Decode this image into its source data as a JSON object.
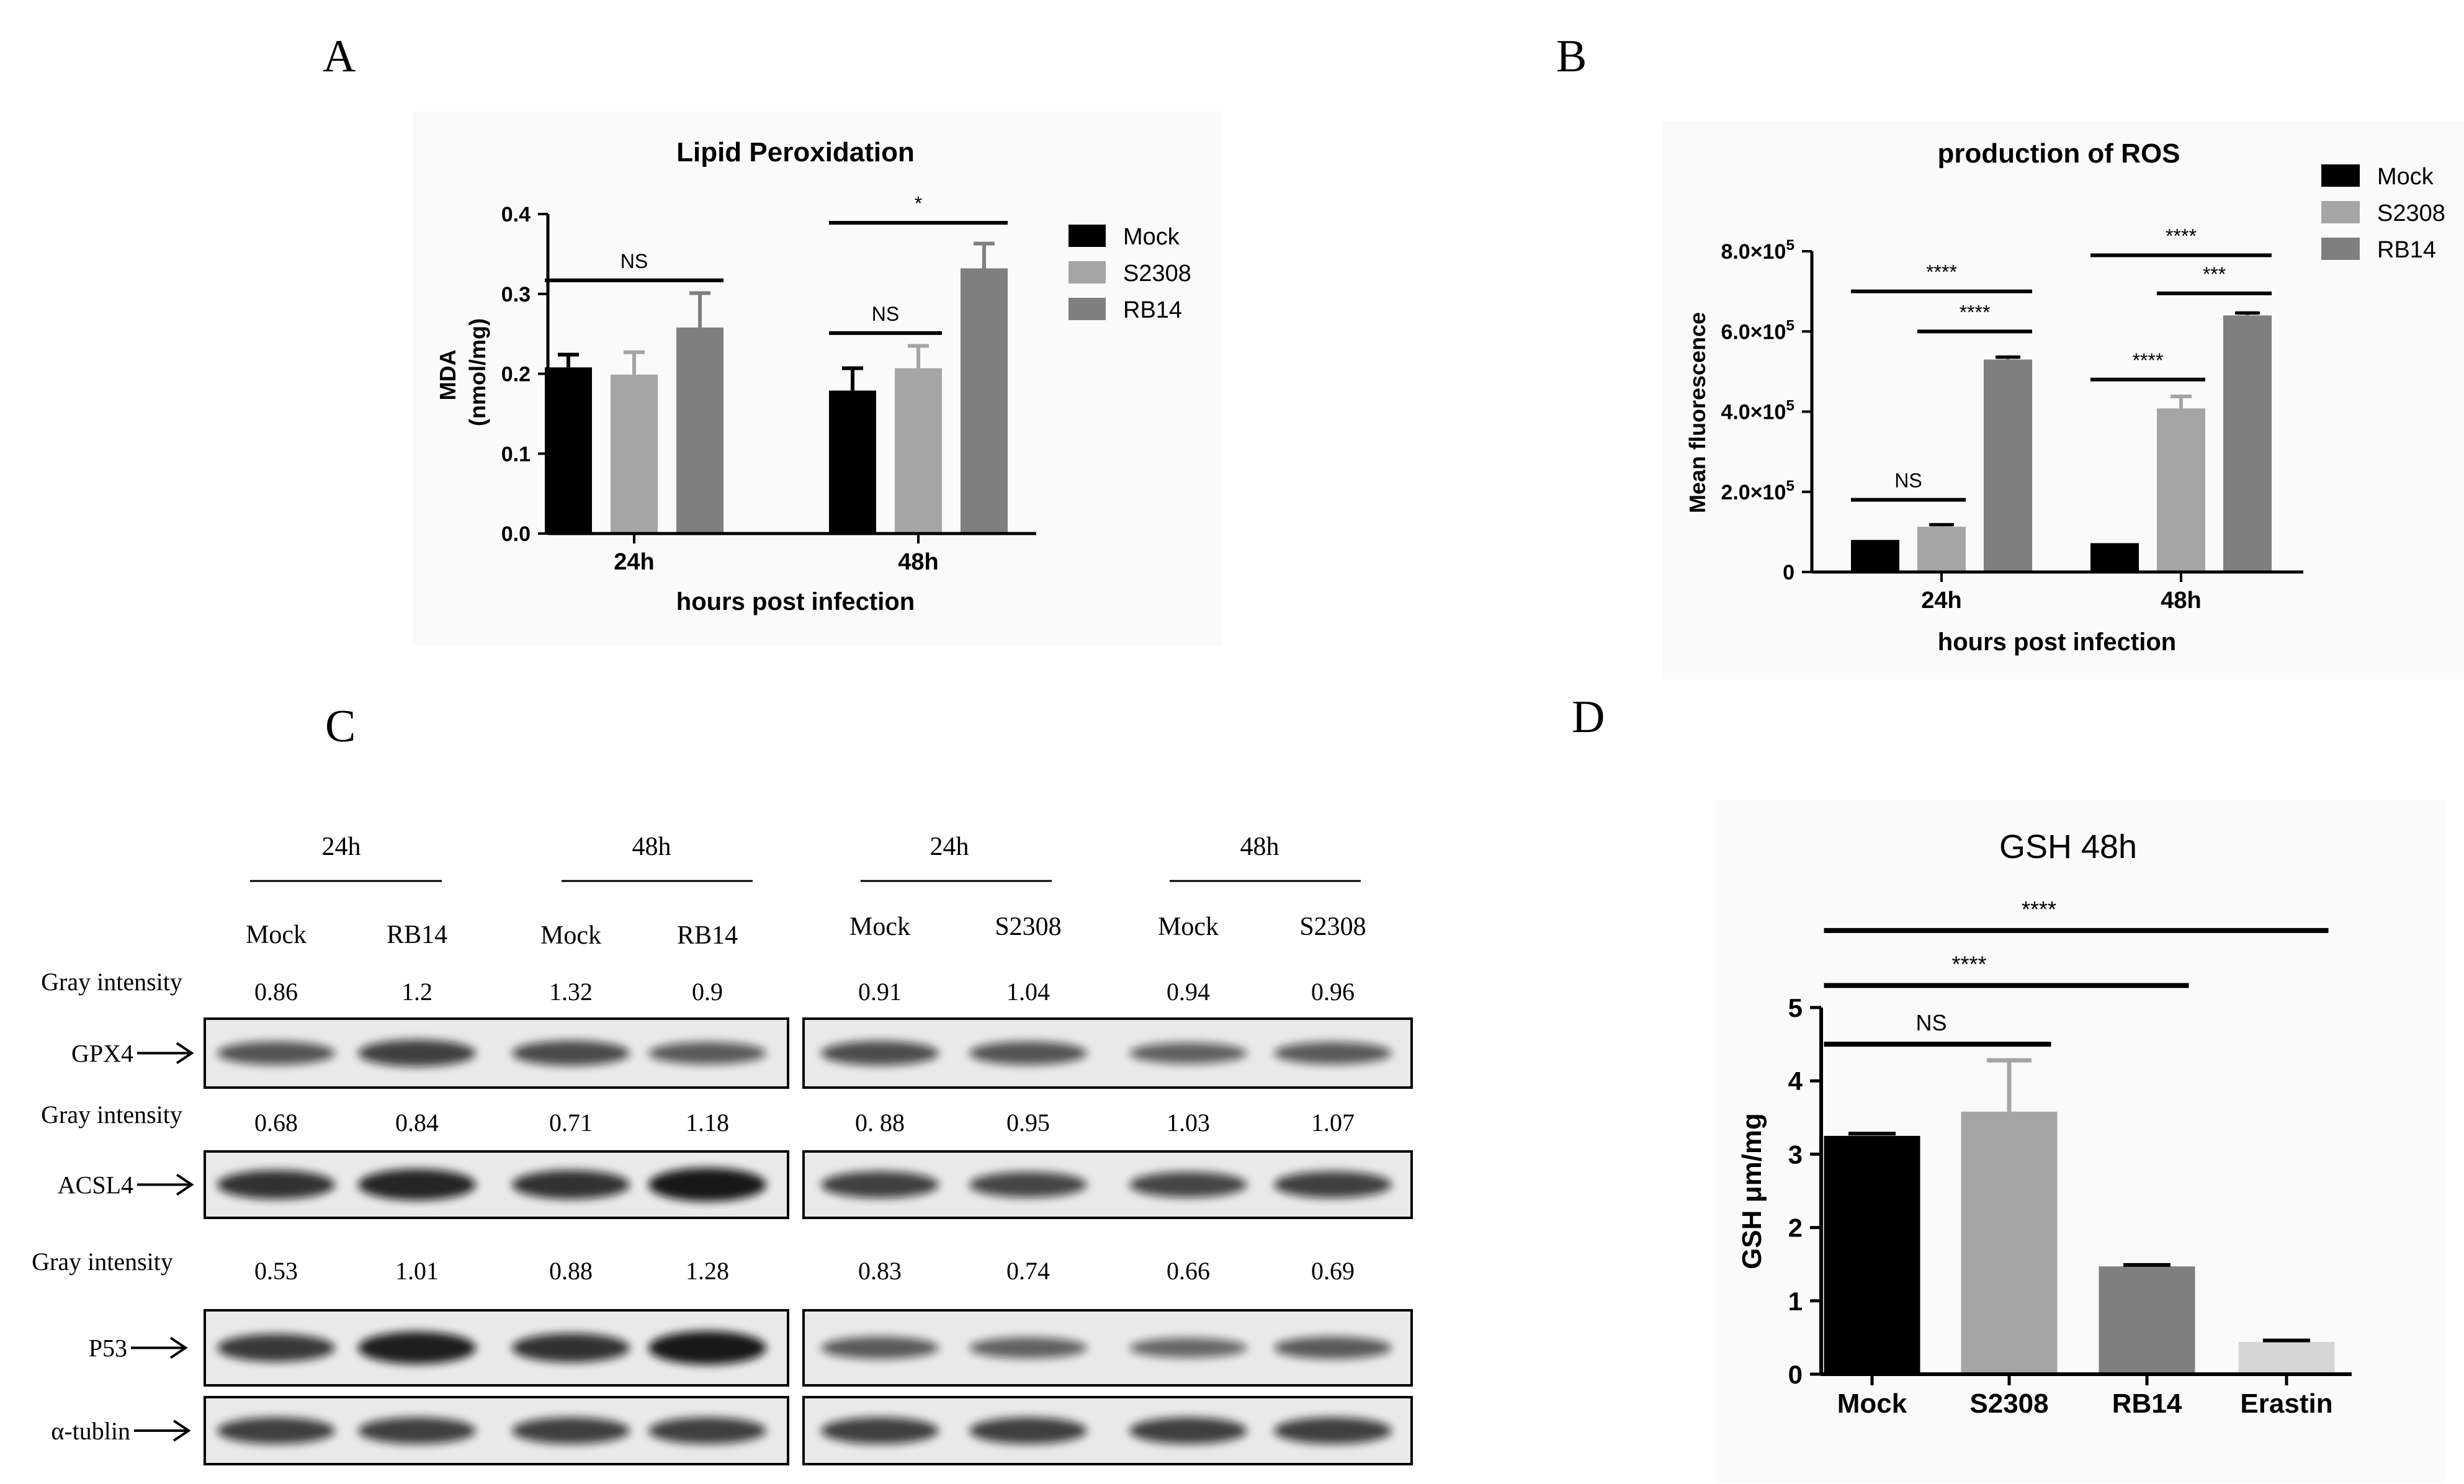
{
  "panels": {
    "a": {
      "letter": "A"
    },
    "b": {
      "letter": "B"
    },
    "c": {
      "letter": "C"
    },
    "d": {
      "letter": "D"
    }
  },
  "series_colors": {
    "Mock": "#000000",
    "S2308": "#a5a5a5",
    "RB14": "#7f7f7f",
    "Erastin": "#d6d6d6"
  },
  "chart_data": [
    {
      "panel": "A",
      "type": "bar",
      "title": "Lipid Peroxidation",
      "xlabel": "hours post infection",
      "ylabel": "MDA\n(nmol/mg)",
      "categories": [
        "24h",
        "48h"
      ],
      "series": [
        {
          "name": "Mock",
          "values": [
            0.208,
            0.179
          ],
          "errors": [
            0.016,
            0.028
          ]
        },
        {
          "name": "S2308",
          "values": [
            0.199,
            0.207
          ],
          "errors": [
            0.028,
            0.028
          ]
        },
        {
          "name": "RB14",
          "values": [
            0.258,
            0.332
          ],
          "errors": [
            0.043,
            0.031
          ]
        }
      ],
      "ylim": [
        0,
        0.4
      ],
      "yticks": [
        "0.0",
        "0.1",
        "0.2",
        "0.3",
        "0.4"
      ],
      "legend": "right",
      "significance": [
        {
          "label": "NS",
          "group": "24h",
          "from": "Mock",
          "to": "RB14",
          "y": 0.317
        },
        {
          "label": "NS",
          "group": "48h",
          "from": "Mock",
          "to": "S2308",
          "y": 0.251
        },
        {
          "label": "*",
          "group": "48h",
          "from": "Mock",
          "to": "RB14",
          "y": 0.389
        }
      ]
    },
    {
      "panel": "B",
      "type": "bar",
      "title": "production of ROS",
      "xlabel": "hours post infection",
      "ylabel": "Mean fluorescence",
      "categories": [
        "24h",
        "48h"
      ],
      "series": [
        {
          "name": "Mock",
          "values": [
            80000,
            72000
          ],
          "errors": [
            0,
            0
          ]
        },
        {
          "name": "S2308",
          "values": [
            113000,
            408000
          ],
          "errors": [
            5000,
            30000
          ]
        },
        {
          "name": "RB14",
          "values": [
            530000,
            640000
          ],
          "errors": [
            6000,
            6000
          ]
        }
      ],
      "ylim": [
        0,
        800000
      ],
      "yticks": [
        {
          "v": 0,
          "m": "0",
          "e": ""
        },
        {
          "v": 200000,
          "m": "2.0×10",
          "e": "5"
        },
        {
          "v": 400000,
          "m": "4.0×10",
          "e": "5"
        },
        {
          "v": 600000,
          "m": "6.0×10",
          "e": "5"
        },
        {
          "v": 800000,
          "m": "8.0×10",
          "e": "5"
        }
      ],
      "legend": "top-right",
      "significance": [
        {
          "label": "NS",
          "group": "24h",
          "from": "Mock",
          "to": "S2308",
          "y": 180000
        },
        {
          "label": "****",
          "group": "24h",
          "from": "S2308",
          "to": "RB14",
          "y": 600000
        },
        {
          "label": "****",
          "group": "24h",
          "from": "Mock",
          "to": "RB14",
          "y": 700000
        },
        {
          "label": "****",
          "group": "48h",
          "from": "Mock",
          "to": "S2308",
          "y": 480000
        },
        {
          "label": "***",
          "group": "48h",
          "from": "S2308",
          "to": "RB14",
          "y": 695000
        },
        {
          "label": "****",
          "group": "48h",
          "from": "Mock",
          "to": "RB14",
          "y": 790000
        }
      ]
    },
    {
      "panel": "D",
      "type": "bar",
      "title": "GSH 48h",
      "xlabel": "",
      "ylabel": "GSH μm/mg",
      "categories": [
        "Mock",
        "S2308",
        "RB14",
        "Erastin"
      ],
      "values": [
        3.25,
        3.58,
        1.47,
        0.44
      ],
      "errors": [
        0.03,
        0.7,
        0.02,
        0.02
      ],
      "ylim": [
        0,
        5
      ],
      "yticks": [
        "0",
        "1",
        "2",
        "3",
        "4",
        "5"
      ],
      "significance": [
        {
          "label": "NS",
          "from": "Mock",
          "to": "S2308",
          "y": 4.5
        },
        {
          "label": "****",
          "from": "Mock",
          "to": "RB14",
          "y": 5.3
        },
        {
          "label": "****",
          "from": "Mock",
          "to": "Erastin",
          "y": 6.05
        }
      ]
    }
  ],
  "blot": {
    "groups": [
      {
        "time": "24h",
        "lanes": [
          "Mock",
          "RB14"
        ]
      },
      {
        "time": "48h",
        "lanes": [
          "Mock",
          "RB14"
        ]
      },
      {
        "time": "24h",
        "lanes": [
          "Mock",
          "S2308"
        ]
      },
      {
        "time": "48h",
        "lanes": [
          "Mock",
          "S2308"
        ]
      }
    ],
    "rows": [
      {
        "label": "GPX4",
        "gray_label": "Gray intensity",
        "values": [
          "0.86",
          "1.2",
          "1.32",
          "0.9",
          "0.91",
          "1.04",
          "0.94",
          "0.96"
        ],
        "band": [
          0.55,
          0.7,
          0.62,
          0.5,
          0.6,
          0.55,
          0.45,
          0.5
        ]
      },
      {
        "label": "ACSL4",
        "gray_label": "Gray intensity",
        "values": [
          "0.68",
          "0.84",
          "0.71",
          "1.18",
          "0. 88",
          "0.95",
          "1.03",
          "1.07"
        ],
        "band": [
          0.8,
          0.9,
          0.8,
          1.0,
          0.7,
          0.65,
          0.65,
          0.7
        ]
      },
      {
        "label": "P53",
        "gray_label": "Gray intensity",
        "values": [
          "0.53",
          "1.01",
          "0.88",
          "1.28",
          "0.83",
          "0.74",
          "0.66",
          "0.69"
        ],
        "band": [
          0.75,
          0.95,
          0.8,
          1.0,
          0.5,
          0.45,
          0.4,
          0.5
        ]
      },
      {
        "label": "α-tublin",
        "gray_label": "",
        "values": [],
        "band": [
          0.7,
          0.7,
          0.7,
          0.7,
          0.7,
          0.7,
          0.7,
          0.7
        ]
      }
    ]
  }
}
